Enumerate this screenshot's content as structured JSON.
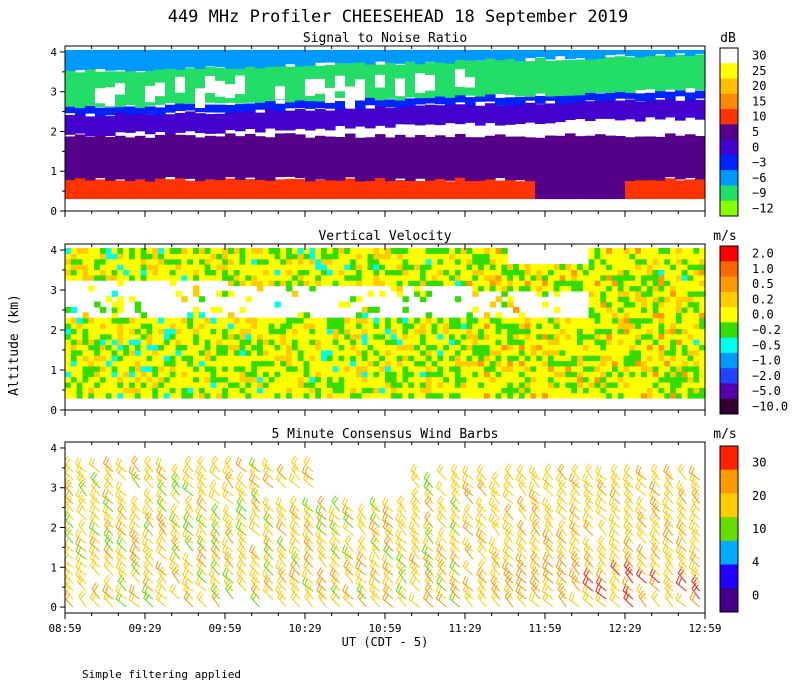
{
  "title": "449 MHz Profiler CHEESEHEAD 18 September 2019",
  "footnote": "Simple filtering applied",
  "y_axis_label": "Altitude (km)",
  "chart_data": [
    {
      "type": "heatmap",
      "title": "Signal to Noise Ratio",
      "unit_label": "dB",
      "xlim": [
        0,
        240
      ],
      "ylim": [
        0,
        4.15
      ],
      "y_ticks": [
        0,
        1,
        2,
        3,
        4
      ],
      "colorbar": {
        "levels": [
          "30",
          "25",
          "20",
          "15",
          "10",
          "5",
          "0",
          "−3",
          "−6",
          "−9",
          "−12"
        ],
        "colors": [
          "#ffffff",
          "#ffff00",
          "#ffc000",
          "#ff8800",
          "#ff3300",
          "#550088",
          "#4400cc",
          "#0022ff",
          "#0099ff",
          "#22dd66",
          "#88ff00"
        ]
      },
      "bands": [
        {
          "from": 0.3,
          "to": 0.8,
          "value": "10"
        },
        {
          "from": 0.8,
          "to": 1.9,
          "value": "5"
        },
        {
          "from": 1.9,
          "to": 2.4,
          "value": "0"
        },
        {
          "from": 2.4,
          "to": 2.6,
          "value": "−3"
        },
        {
          "from": 2.6,
          "to": 3.5,
          "value": "−9"
        },
        {
          "from": 3.5,
          "to": 4.05,
          "value": "−6"
        }
      ]
    },
    {
      "type": "heatmap",
      "title": "Vertical Velocity",
      "unit_label": "m/s",
      "xlim": [
        0,
        240
      ],
      "ylim": [
        0,
        4.15
      ],
      "y_ticks": [
        0,
        1,
        2,
        3,
        4
      ],
      "colorbar": {
        "levels": [
          "2.0",
          "1.0",
          "0.5",
          "0.2",
          "0.0",
          "−0.2",
          "−0.5",
          "−1.0",
          "−2.0",
          "−5.0",
          "−10.0"
        ],
        "colors": [
          "#ff0000",
          "#ff6600",
          "#ff9900",
          "#ffcc00",
          "#ffff00",
          "#33dd00",
          "#00ffee",
          "#0099ff",
          "#2244ff",
          "#5500aa",
          "#330033"
        ]
      },
      "dominant_value": "0.0"
    },
    {
      "type": "scatter",
      "title": "5 Minute Consensus Wind Barbs",
      "unit_label": "m/s",
      "xlim": [
        0,
        240
      ],
      "ylim": [
        -0.15,
        4.15
      ],
      "y_ticks": [
        0,
        1,
        2,
        3,
        4
      ],
      "colorbar": {
        "levels": [
          "30",
          "20",
          "10",
          "4",
          "0"
        ],
        "colors": [
          "#ff2200",
          "#ff9900",
          "#ffcc00",
          "#66dd00",
          "#00aaff",
          "#2200ff",
          "#440088"
        ]
      },
      "marker": "wind barb",
      "time_step_min": 5,
      "altitude_step_km": 0.2,
      "dominant_speed_ms": 15
    }
  ],
  "x_axis": {
    "tick_labels": [
      "08:59",
      "09:29",
      "09:59",
      "10:29",
      "10:59",
      "11:29",
      "11:59",
      "12:29",
      "12:59"
    ],
    "tick_minutes": [
      0,
      30,
      60,
      90,
      120,
      150,
      180,
      210,
      240
    ],
    "label": "UT (CDT - 5)"
  }
}
